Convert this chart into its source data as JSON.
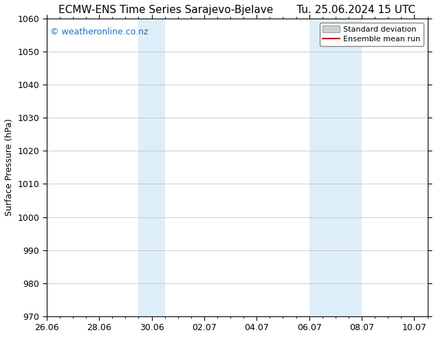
{
  "title_left": "ECMW-ENS Time Series Sarajevo-Bjelave",
  "title_right": "Tu. 25.06.2024 15 UTC",
  "ylabel": "Surface Pressure (hPa)",
  "ylim": [
    970,
    1060
  ],
  "yticks": [
    970,
    980,
    990,
    1000,
    1010,
    1020,
    1030,
    1040,
    1050,
    1060
  ],
  "xlim": [
    0,
    14.5
  ],
  "x_tick_labels": [
    "26.06",
    "28.06",
    "30.06",
    "02.07",
    "04.07",
    "06.07",
    "08.07",
    "10.07"
  ],
  "x_tick_positions": [
    0,
    2,
    4,
    6,
    8,
    10,
    12,
    14
  ],
  "x_minor_tick_spacing": 0.5,
  "shaded_bands": [
    {
      "x_start": 3.5,
      "x_end": 4.5
    },
    {
      "x_start": 10.0,
      "x_end": 12.0
    }
  ],
  "shaded_color": "#ddeef8",
  "watermark_text": "© weatheronline.co.nz",
  "watermark_color": "#1a6fc4",
  "watermark_fontsize": 9,
  "legend_label_1": "Standard deviation",
  "legend_label_2": "Ensemble mean run",
  "legend_patch_facecolor": "#d0d0d0",
  "legend_patch_edgecolor": "#999999",
  "legend_line_color": "#cc0000",
  "title_fontsize": 11,
  "axis_label_fontsize": 9,
  "tick_fontsize": 9,
  "bg_color": "#ffffff",
  "grid_color": "#bbbbbb",
  "border_color": "#000000"
}
